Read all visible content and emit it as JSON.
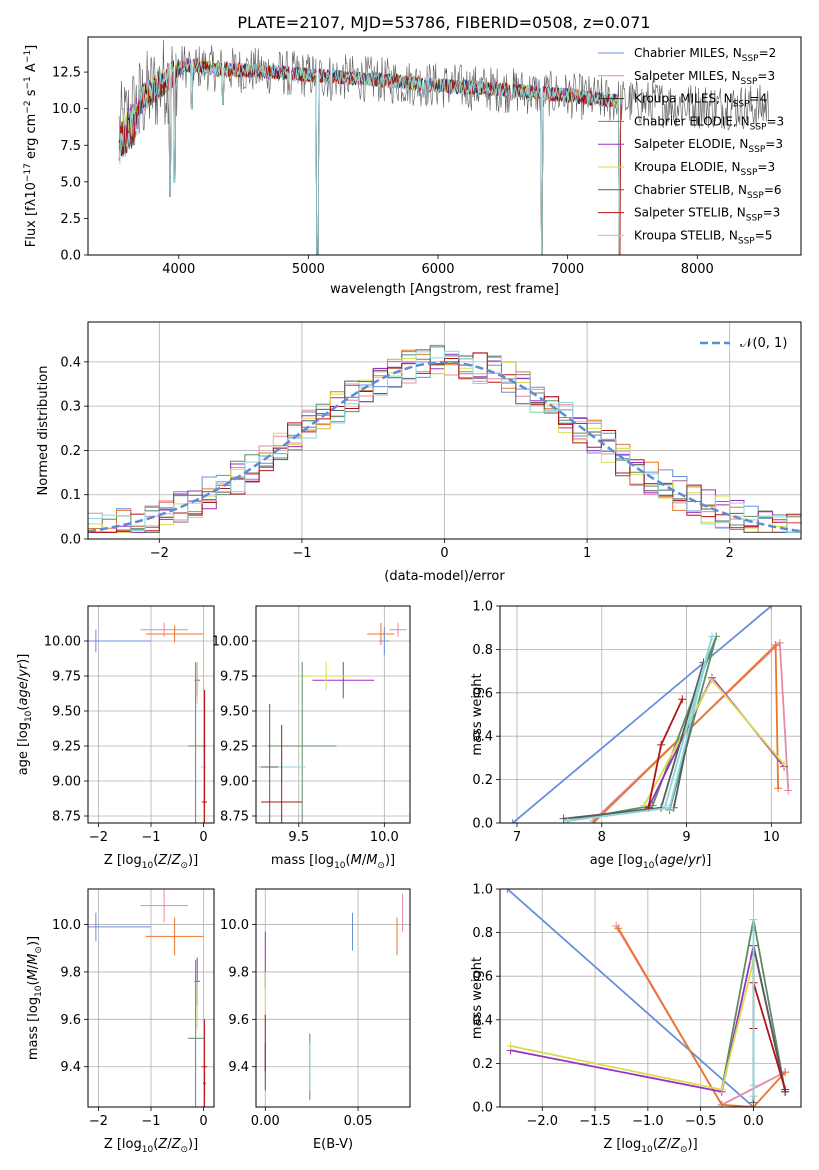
{
  "figure_title": "PLATE=2107, MJD=53786, FIBERID=0508, z=0.071",
  "series_colors": [
    "#6a8fdb",
    "#e58aa8",
    "#2e2e2e",
    "#5e8b67",
    "#9b2fc2",
    "#d8dd4f",
    "#5b5b5b",
    "#b01515",
    "#8ad8dc"
  ],
  "colors_extra": {
    "orange": "#e8772e",
    "teal": "#57c2c8",
    "gray": "#808080"
  },
  "chart_data": [
    {
      "id": "spectrum",
      "type": "line",
      "xlabel": "wavelength [Angstrom, rest frame]",
      "ylabel": "Flux [f",
      "ylabel_rest": "10",
      "xlim": [
        3300,
        8800
      ],
      "ylim": [
        0,
        14.9
      ],
      "xticks": [
        4000,
        5000,
        6000,
        7000,
        8000
      ],
      "yticks": [
        0.0,
        2.5,
        5.0,
        7.5,
        10.0,
        12.5
      ],
      "ytick_labels": [
        "0.0",
        "2.5",
        "5.0",
        "7.5",
        "10.0",
        "12.5"
      ],
      "legend": [
        {
          "pre": "Chabrier MILES, N",
          "post": "=2"
        },
        {
          "pre": "Salpeter MILES, N",
          "post": "=3"
        },
        {
          "pre": "Kroupa MILES, N",
          "post": "=4"
        },
        {
          "pre": "Chabrier ELODIE, N",
          "post": "=3"
        },
        {
          "pre": "Salpeter ELODIE, N",
          "post": "=3"
        },
        {
          "pre": "Kroupa ELODIE, N",
          "post": "=3"
        },
        {
          "pre": "Chabrier STELIB, N",
          "post": "=6"
        },
        {
          "pre": "Salpeter STELIB, N",
          "post": "=3"
        },
        {
          "pre": "Kroupa STELIB, N",
          "post": "=5"
        }
      ],
      "legend_sub": "SSP",
      "continuum": [
        [
          3540,
          8.5
        ],
        [
          3700,
          10.5
        ],
        [
          3900,
          12.0
        ],
        [
          4050,
          13.0
        ],
        [
          4300,
          12.7
        ],
        [
          4600,
          12.6
        ],
        [
          5000,
          12.3
        ],
        [
          5500,
          12.0
        ],
        [
          6000,
          11.6
        ],
        [
          6500,
          11.3
        ],
        [
          7000,
          10.9
        ],
        [
          7400,
          10.5
        ],
        [
          8000,
          10.2
        ],
        [
          8500,
          10.1
        ]
      ],
      "absorption": [
        [
          3934,
          4.0
        ],
        [
          3968,
          5.0
        ],
        [
          4101,
          10.0
        ],
        [
          4340,
          10.3
        ],
        [
          4861,
          11.0
        ],
        [
          5070,
          0.0
        ],
        [
          5175,
          10.6
        ],
        [
          5890,
          10.8
        ],
        [
          6563,
          10.6
        ],
        [
          6800,
          0.0
        ],
        [
          7400,
          0.0
        ]
      ]
    },
    {
      "id": "residual-hist",
      "type": "histogram",
      "xlabel": "(data-model)/error",
      "ylabel": "Normed distribution",
      "xlim": [
        -2.5,
        2.5
      ],
      "ylim": [
        0,
        0.49
      ],
      "xticks": [
        -2,
        -1,
        0,
        1,
        2
      ],
      "xtick_labels": [
        "−2",
        "−1",
        "0",
        "1",
        "2"
      ],
      "yticks": [
        0.0,
        0.1,
        0.2,
        0.3,
        0.4
      ],
      "ytick_labels": [
        "0.0",
        "0.1",
        "0.2",
        "0.3",
        "0.4"
      ],
      "legend_label": "𝒩(0, 1)",
      "bin_width": 0.1
    },
    {
      "id": "age-vs-Z",
      "type": "errorbar",
      "xlabel": "Z [log",
      "ylabel": "age  [log",
      "xlim": [
        -2.2,
        0.2
      ],
      "ylim": [
        8.7,
        10.25
      ],
      "xticks": [
        -2,
        -1,
        0
      ],
      "xtick_labels": [
        "−2",
        "−1",
        "0"
      ],
      "yticks": [
        8.75,
        9.0,
        9.25,
        9.5,
        9.75,
        10.0
      ],
      "ytick_labels": [
        "8.75",
        "9.00",
        "9.25",
        "9.50",
        "9.75",
        "10.00"
      ],
      "points": [
        {
          "x": -2.05,
          "xerr": 1.05,
          "y": 10.0,
          "yerr": 0.08,
          "c": 0
        },
        {
          "x": -0.75,
          "xerr": 0.45,
          "y": 10.08,
          "yerr": 0.05,
          "c": 1
        },
        {
          "x": -0.55,
          "xerr": 0.55,
          "y": 10.05,
          "yerr": 0.06,
          "c": "orange"
        },
        {
          "x": -0.12,
          "xerr": 0.05,
          "y": 9.72,
          "yerr": 0.12,
          "c": 4
        },
        {
          "x": -0.12,
          "xerr": 0.02,
          "y": 9.7,
          "yerr": 0.15,
          "c": 5
        },
        {
          "x": -0.15,
          "xerr": 0.15,
          "y": 9.25,
          "yerr": 0.6,
          "c": 3
        },
        {
          "x": 0.0,
          "xerr": 0.05,
          "y": 9.1,
          "yerr": 0.1,
          "c": 8
        },
        {
          "x": 0.02,
          "xerr": 0.03,
          "y": 9.25,
          "yerr": 0.4,
          "c": 6
        },
        {
          "x": 0.02,
          "xerr": 0.05,
          "y": 8.85,
          "yerr": 0.8,
          "c": 7
        }
      ]
    },
    {
      "id": "age-vs-mass",
      "type": "errorbar",
      "xlabel": "mass [log",
      "xlim": [
        9.25,
        10.15
      ],
      "ylim": [
        8.7,
        10.25
      ],
      "xticks": [
        9.5,
        10.0
      ],
      "xtick_labels": [
        "9.5",
        "10.0"
      ],
      "yticks": [
        8.75,
        9.0,
        9.25,
        9.5,
        9.75,
        10.0
      ],
      "ytick_labels": [
        "8.75",
        "9.00",
        "9.25",
        "9.50",
        "9.75",
        "10.00"
      ],
      "points": [
        {
          "x": 10.0,
          "xerr": 0.03,
          "y": 10.0,
          "yerr": 0.1,
          "c": 0
        },
        {
          "x": 10.08,
          "xerr": 0.05,
          "y": 10.08,
          "yerr": 0.05,
          "c": 1
        },
        {
          "x": 9.98,
          "xerr": 0.08,
          "y": 10.05,
          "yerr": 0.08,
          "c": "orange"
        },
        {
          "x": 9.76,
          "xerr": 0.18,
          "y": 9.72,
          "yerr": 0.13,
          "c": 4
        },
        {
          "x": 9.66,
          "xerr": 0.14,
          "y": 9.75,
          "yerr": 0.1,
          "c": 5
        },
        {
          "x": 9.52,
          "xerr": 0.2,
          "y": 9.25,
          "yerr": 0.6,
          "c": 3
        },
        {
          "x": 9.4,
          "xerr": 0.14,
          "y": 9.1,
          "yerr": 0.1,
          "c": 8
        },
        {
          "x": 9.33,
          "xerr": 0.05,
          "y": 9.1,
          "yerr": 0.45,
          "c": 6
        },
        {
          "x": 9.4,
          "xerr": 0.12,
          "y": 8.85,
          "yerr": 0.55,
          "c": 7
        }
      ]
    },
    {
      "id": "weight-vs-age",
      "type": "line",
      "xlabel": "age  [log",
      "ylabel": "mass weight",
      "xlim": [
        6.8,
        10.35
      ],
      "ylim": [
        0,
        1.0
      ],
      "xticks": [
        7,
        8,
        9,
        10
      ],
      "xtick_labels": [
        "7",
        "8",
        "9",
        "10"
      ],
      "yticks": [
        0.0,
        0.2,
        0.4,
        0.6,
        0.8,
        1.0
      ],
      "ytick_labels": [
        "0.0",
        "0.2",
        "0.4",
        "0.6",
        "0.8",
        "1.0"
      ],
      "series": [
        {
          "c": 0,
          "pts": [
            [
              6.95,
              0.0
            ],
            [
              10.0,
              1.0
            ]
          ]
        },
        {
          "c": 1,
          "pts": [
            [
              7.9,
              0.01
            ],
            [
              10.1,
              0.83
            ],
            [
              10.2,
              0.15
            ]
          ]
        },
        {
          "c": "orange",
          "pts": [
            [
              7.9,
              0.0
            ],
            [
              10.05,
              0.82
            ],
            [
              10.08,
              0.16
            ]
          ]
        },
        {
          "c": 3,
          "pts": [
            [
              7.6,
              0.01
            ],
            [
              8.6,
              0.08
            ],
            [
              9.35,
              0.86
            ],
            [
              8.8,
              0.06
            ]
          ]
        },
        {
          "c": 4,
          "pts": [
            [
              8.55,
              0.07
            ],
            [
              9.3,
              0.67
            ],
            [
              10.15,
              0.26
            ]
          ]
        },
        {
          "c": 5,
          "pts": [
            [
              8.5,
              0.08
            ],
            [
              9.3,
              0.66
            ],
            [
              10.15,
              0.27
            ]
          ]
        },
        {
          "c": 6,
          "pts": [
            [
              7.55,
              0.02
            ],
            [
              8.7,
              0.07
            ],
            [
              9.2,
              0.74
            ],
            [
              8.85,
              0.07
            ]
          ]
        },
        {
          "c": 7,
          "pts": [
            [
              8.55,
              0.07
            ],
            [
              8.7,
              0.36
            ],
            [
              8.95,
              0.57
            ]
          ]
        },
        {
          "c": 8,
          "pts": [
            [
              7.6,
              0.01
            ],
            [
              8.8,
              0.07
            ],
            [
              9.3,
              0.86
            ],
            [
              8.75,
              0.08
            ]
          ]
        }
      ]
    },
    {
      "id": "mass-vs-Z",
      "type": "errorbar",
      "xlabel": "Z [log",
      "ylabel": "mass [log",
      "xlim": [
        -2.2,
        0.2
      ],
      "ylim": [
        9.23,
        10.15
      ],
      "xticks": [
        -2,
        -1,
        0
      ],
      "xtick_labels": [
        "−2",
        "−1",
        "0"
      ],
      "yticks": [
        9.4,
        9.6,
        9.8,
        10.0
      ],
      "ytick_labels": [
        "9.4",
        "9.6",
        "9.8",
        "10.0"
      ],
      "points": [
        {
          "x": -2.05,
          "xerr": 1.05,
          "y": 9.99,
          "yerr": 0.06,
          "c": 0
        },
        {
          "x": -0.75,
          "xerr": 0.45,
          "y": 10.08,
          "yerr": 0.07,
          "c": 1
        },
        {
          "x": -0.55,
          "xerr": 0.55,
          "y": 9.95,
          "yerr": 0.08,
          "c": "orange"
        },
        {
          "x": -0.12,
          "xerr": 0.05,
          "y": 9.76,
          "yerr": 0.1,
          "c": 4
        },
        {
          "x": -0.12,
          "xerr": 0.02,
          "y": 9.66,
          "yerr": 0.1,
          "c": 5
        },
        {
          "x": -0.15,
          "xerr": 0.15,
          "y": 9.52,
          "yerr": 0.33,
          "c": 3
        },
        {
          "x": 0.0,
          "xerr": 0.05,
          "y": 9.4,
          "yerr": 0.1,
          "c": 8
        },
        {
          "x": 0.02,
          "xerr": 0.03,
          "y": 9.33,
          "yerr": 0.05,
          "c": 6
        },
        {
          "x": 0.02,
          "xerr": 0.05,
          "y": 9.4,
          "yerr": 0.2,
          "c": 7
        }
      ]
    },
    {
      "id": "mass-vs-EBV",
      "type": "errorbar",
      "xlabel": "E(B-V)",
      "xlim": [
        -0.005,
        0.078
      ],
      "ylim": [
        9.23,
        10.15
      ],
      "xticks": [
        0.0,
        0.05
      ],
      "xtick_labels": [
        "0.00",
        "0.05"
      ],
      "yticks": [
        9.4,
        9.6,
        9.8,
        10.0
      ],
      "ytick_labels": [
        "9.4",
        "9.6",
        "9.8",
        "10.0"
      ],
      "points": [
        {
          "x": 0.047,
          "y": 9.97,
          "yerr": 0.08,
          "c": 0
        },
        {
          "x": 0.074,
          "y": 10.05,
          "yerr": 0.08,
          "c": 1
        },
        {
          "x": 0.071,
          "y": 9.95,
          "yerr": 0.08,
          "c": "orange"
        },
        {
          "x": 0.0,
          "y": 9.85,
          "yerr": 0.12,
          "c": 4
        },
        {
          "x": 0.0,
          "y": 9.7,
          "yerr": 0.1,
          "c": 5
        },
        {
          "x": 0.024,
          "y": 9.4,
          "yerr": 0.14,
          "c": 3
        },
        {
          "x": 0.024,
          "y": 9.4,
          "yerr": 0.1,
          "c": 8
        },
        {
          "x": 0.0,
          "y": 9.4,
          "yerr": 0.1,
          "c": 6
        },
        {
          "x": 0.0,
          "y": 9.5,
          "yerr": 0.12,
          "c": 7
        }
      ]
    },
    {
      "id": "weight-vs-Z",
      "type": "line",
      "xlabel": "Z [log",
      "ylabel": "mass weight",
      "xlim": [
        -2.4,
        0.45
      ],
      "ylim": [
        0,
        1.0
      ],
      "xticks": [
        -2.0,
        -1.5,
        -1.0,
        -0.5,
        0.0
      ],
      "xtick_labels": [
        "−2.0",
        "−1.5",
        "−1.0",
        "−0.5",
        "0.0"
      ],
      "yticks": [
        0.0,
        0.2,
        0.4,
        0.6,
        0.8,
        1.0
      ],
      "ytick_labels": [
        "0.0",
        "0.2",
        "0.4",
        "0.6",
        "0.8",
        "1.0"
      ],
      "series": [
        {
          "c": 0,
          "pts": [
            [
              -2.33,
              1.0
            ],
            [
              0.0,
              0.0
            ]
          ]
        },
        {
          "c": 1,
          "pts": [
            [
              -1.3,
              0.83
            ],
            [
              -0.3,
              0.01
            ],
            [
              0.3,
              0.16
            ]
          ]
        },
        {
          "c": "orange",
          "pts": [
            [
              -1.28,
              0.82
            ],
            [
              -0.3,
              0.01
            ],
            [
              0.0,
              0.0
            ],
            [
              0.3,
              0.16
            ]
          ]
        },
        {
          "c": 3,
          "pts": [
            [
              -0.3,
              0.08
            ],
            [
              0.0,
              0.86
            ],
            [
              0.3,
              0.07
            ]
          ]
        },
        {
          "c": 4,
          "pts": [
            [
              -2.3,
              0.26
            ],
            [
              -0.3,
              0.07
            ],
            [
              0.0,
              0.74
            ],
            [
              0.3,
              0.07
            ]
          ]
        },
        {
          "c": 5,
          "pts": [
            [
              -2.3,
              0.28
            ],
            [
              -0.3,
              0.08
            ],
            [
              0.0,
              0.67
            ]
          ]
        },
        {
          "c": 6,
          "pts": [
            [
              0.0,
              0.02
            ],
            [
              0.0,
              0.74
            ],
            [
              0.3,
              0.07
            ]
          ]
        },
        {
          "c": 7,
          "pts": [
            [
              0.0,
              0.36
            ],
            [
              0.0,
              0.57
            ],
            [
              0.3,
              0.08
            ]
          ]
        },
        {
          "c": 8,
          "pts": [
            [
              0.0,
              0.05
            ],
            [
              0.0,
              0.86
            ],
            [
              0.0,
              0.1
            ]
          ]
        }
      ]
    }
  ]
}
